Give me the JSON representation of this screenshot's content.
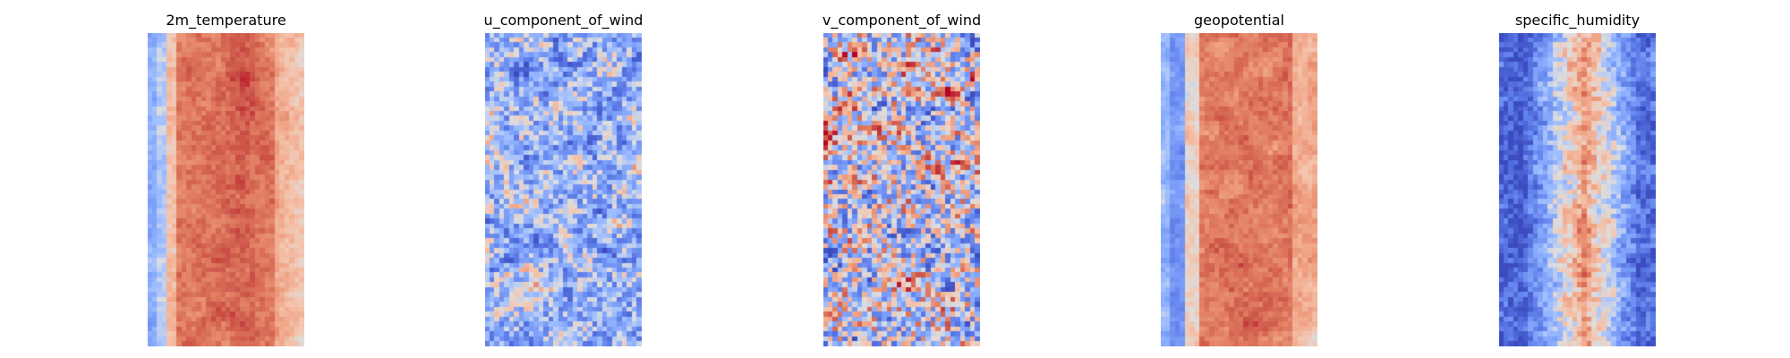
{
  "chart_data": [
    {
      "type": "heatmap",
      "title": "2m_temperature",
      "colormap": "coolwarm",
      "axes_visible": false,
      "grid": false,
      "legend": "none",
      "pattern": "warm central band with cool left edge",
      "seed": 11
    },
    {
      "type": "heatmap",
      "title": "u_component_of_wind",
      "colormap": "coolwarm",
      "axes_visible": false,
      "grid": false,
      "legend": "none",
      "pattern": "mostly cool streaky field with warm streaks on the left",
      "seed": 23
    },
    {
      "type": "heatmap",
      "title": "v_component_of_wind",
      "colormap": "coolwarm",
      "axes_visible": false,
      "grid": false,
      "legend": "none",
      "pattern": "mixed noisy warm and cool patches",
      "seed": 37
    },
    {
      "type": "heatmap",
      "title": "geopotential",
      "colormap": "coolwarm",
      "axes_visible": false,
      "grid": false,
      "legend": "none",
      "pattern": "warm central band with cool left edge and darker blobs",
      "seed": 41
    },
    {
      "type": "heatmap",
      "title": "specific_humidity",
      "colormap": "coolwarm",
      "axes_visible": false,
      "grid": false,
      "legend": "none",
      "pattern": "cool edges with mottled warm center",
      "seed": 53
    }
  ]
}
